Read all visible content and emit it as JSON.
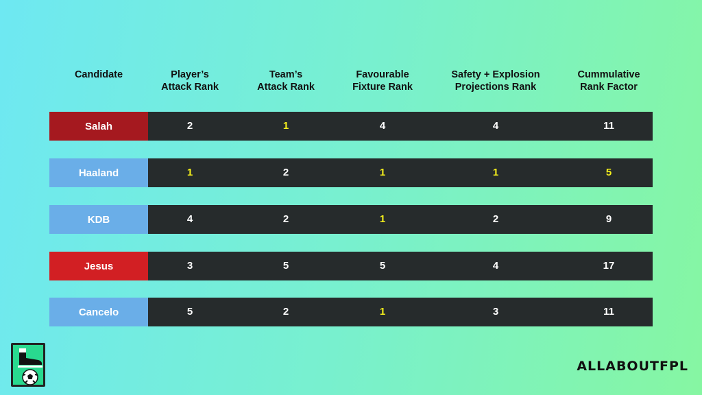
{
  "colors": {
    "liverpool": "#a5191f",
    "city": "#6aaee8",
    "arsenal": "#d21f23",
    "row_bg": "#262b2c",
    "highlight": "#f4ef1c"
  },
  "chart_data": {
    "type": "table",
    "columns": [
      "Candidate",
      "Player’s\nAttack Rank",
      "Team’s\nAttack Rank",
      "Favourable\nFixture Rank",
      "Safety + Explosion\nProjections Rank",
      "Cummulative\nRank Factor"
    ],
    "rows": [
      {
        "name": "Salah",
        "color": "#a5191f",
        "values": [
          2,
          1,
          4,
          4,
          11
        ],
        "highlight": [
          false,
          true,
          false,
          false,
          false
        ]
      },
      {
        "name": "Haaland",
        "color": "#6aaee8",
        "values": [
          1,
          2,
          1,
          1,
          5
        ],
        "highlight": [
          true,
          false,
          true,
          true,
          true
        ]
      },
      {
        "name": "KDB",
        "color": "#6aaee8",
        "values": [
          4,
          2,
          1,
          2,
          9
        ],
        "highlight": [
          false,
          false,
          true,
          false,
          false
        ]
      },
      {
        "name": "Jesus",
        "color": "#d21f23",
        "values": [
          3,
          5,
          5,
          4,
          17
        ],
        "highlight": [
          false,
          false,
          false,
          false,
          false
        ]
      },
      {
        "name": "Cancelo",
        "color": "#6aaee8",
        "values": [
          5,
          2,
          1,
          3,
          11
        ],
        "highlight": [
          false,
          false,
          true,
          false,
          false
        ]
      }
    ]
  },
  "brand": {
    "wordmark": "ALLABOUTFPL",
    "logo_icon": "boot-and-football-icon"
  }
}
